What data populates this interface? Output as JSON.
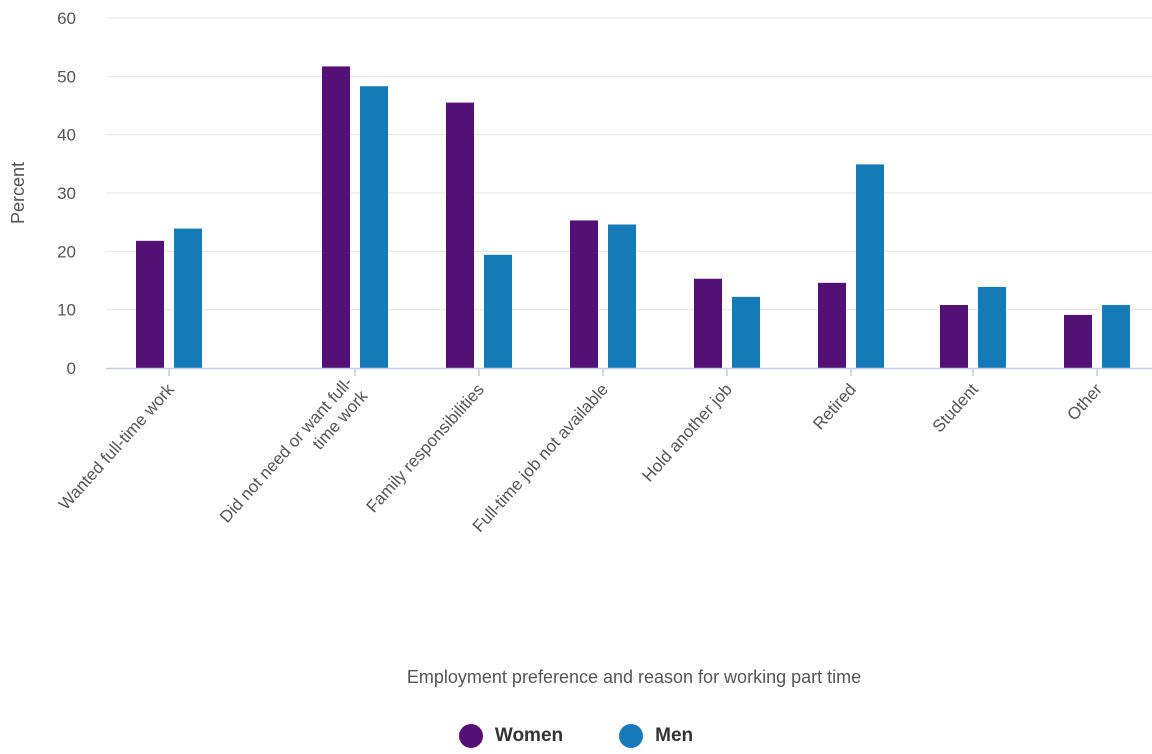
{
  "chart_data": {
    "type": "bar",
    "ylabel": "Percent",
    "xlabel": "Employment preference and reason for working part time",
    "ylim": [
      0,
      60
    ],
    "yticks": [
      0,
      10,
      20,
      30,
      40,
      50,
      60
    ],
    "grid": true,
    "legend_position": "bottom",
    "categories": [
      "Wanted full-time work",
      "Did not need or want full-time work",
      "Family responsibilities",
      "Full-time job not available",
      "Hold another job",
      "Retired",
      "Student",
      "Other"
    ],
    "category_label_lines": [
      [
        "Wanted full-time work"
      ],
      [
        "Did not need or want full-",
        "time work"
      ],
      [
        "Family responsibilities"
      ],
      [
        "Full-time job not available"
      ],
      [
        "Hold another job"
      ],
      [
        "Retired"
      ],
      [
        "Student"
      ],
      [
        "Other"
      ]
    ],
    "series": [
      {
        "name": "Women",
        "color": "#541175",
        "values": [
          21.8,
          51.7,
          45.5,
          25.3,
          15.3,
          14.6,
          10.8,
          9.1
        ]
      },
      {
        "name": "Men",
        "color": "#157bb8",
        "values": [
          23.9,
          48.3,
          19.4,
          24.6,
          12.2,
          34.9,
          13.9,
          10.8
        ]
      }
    ]
  }
}
